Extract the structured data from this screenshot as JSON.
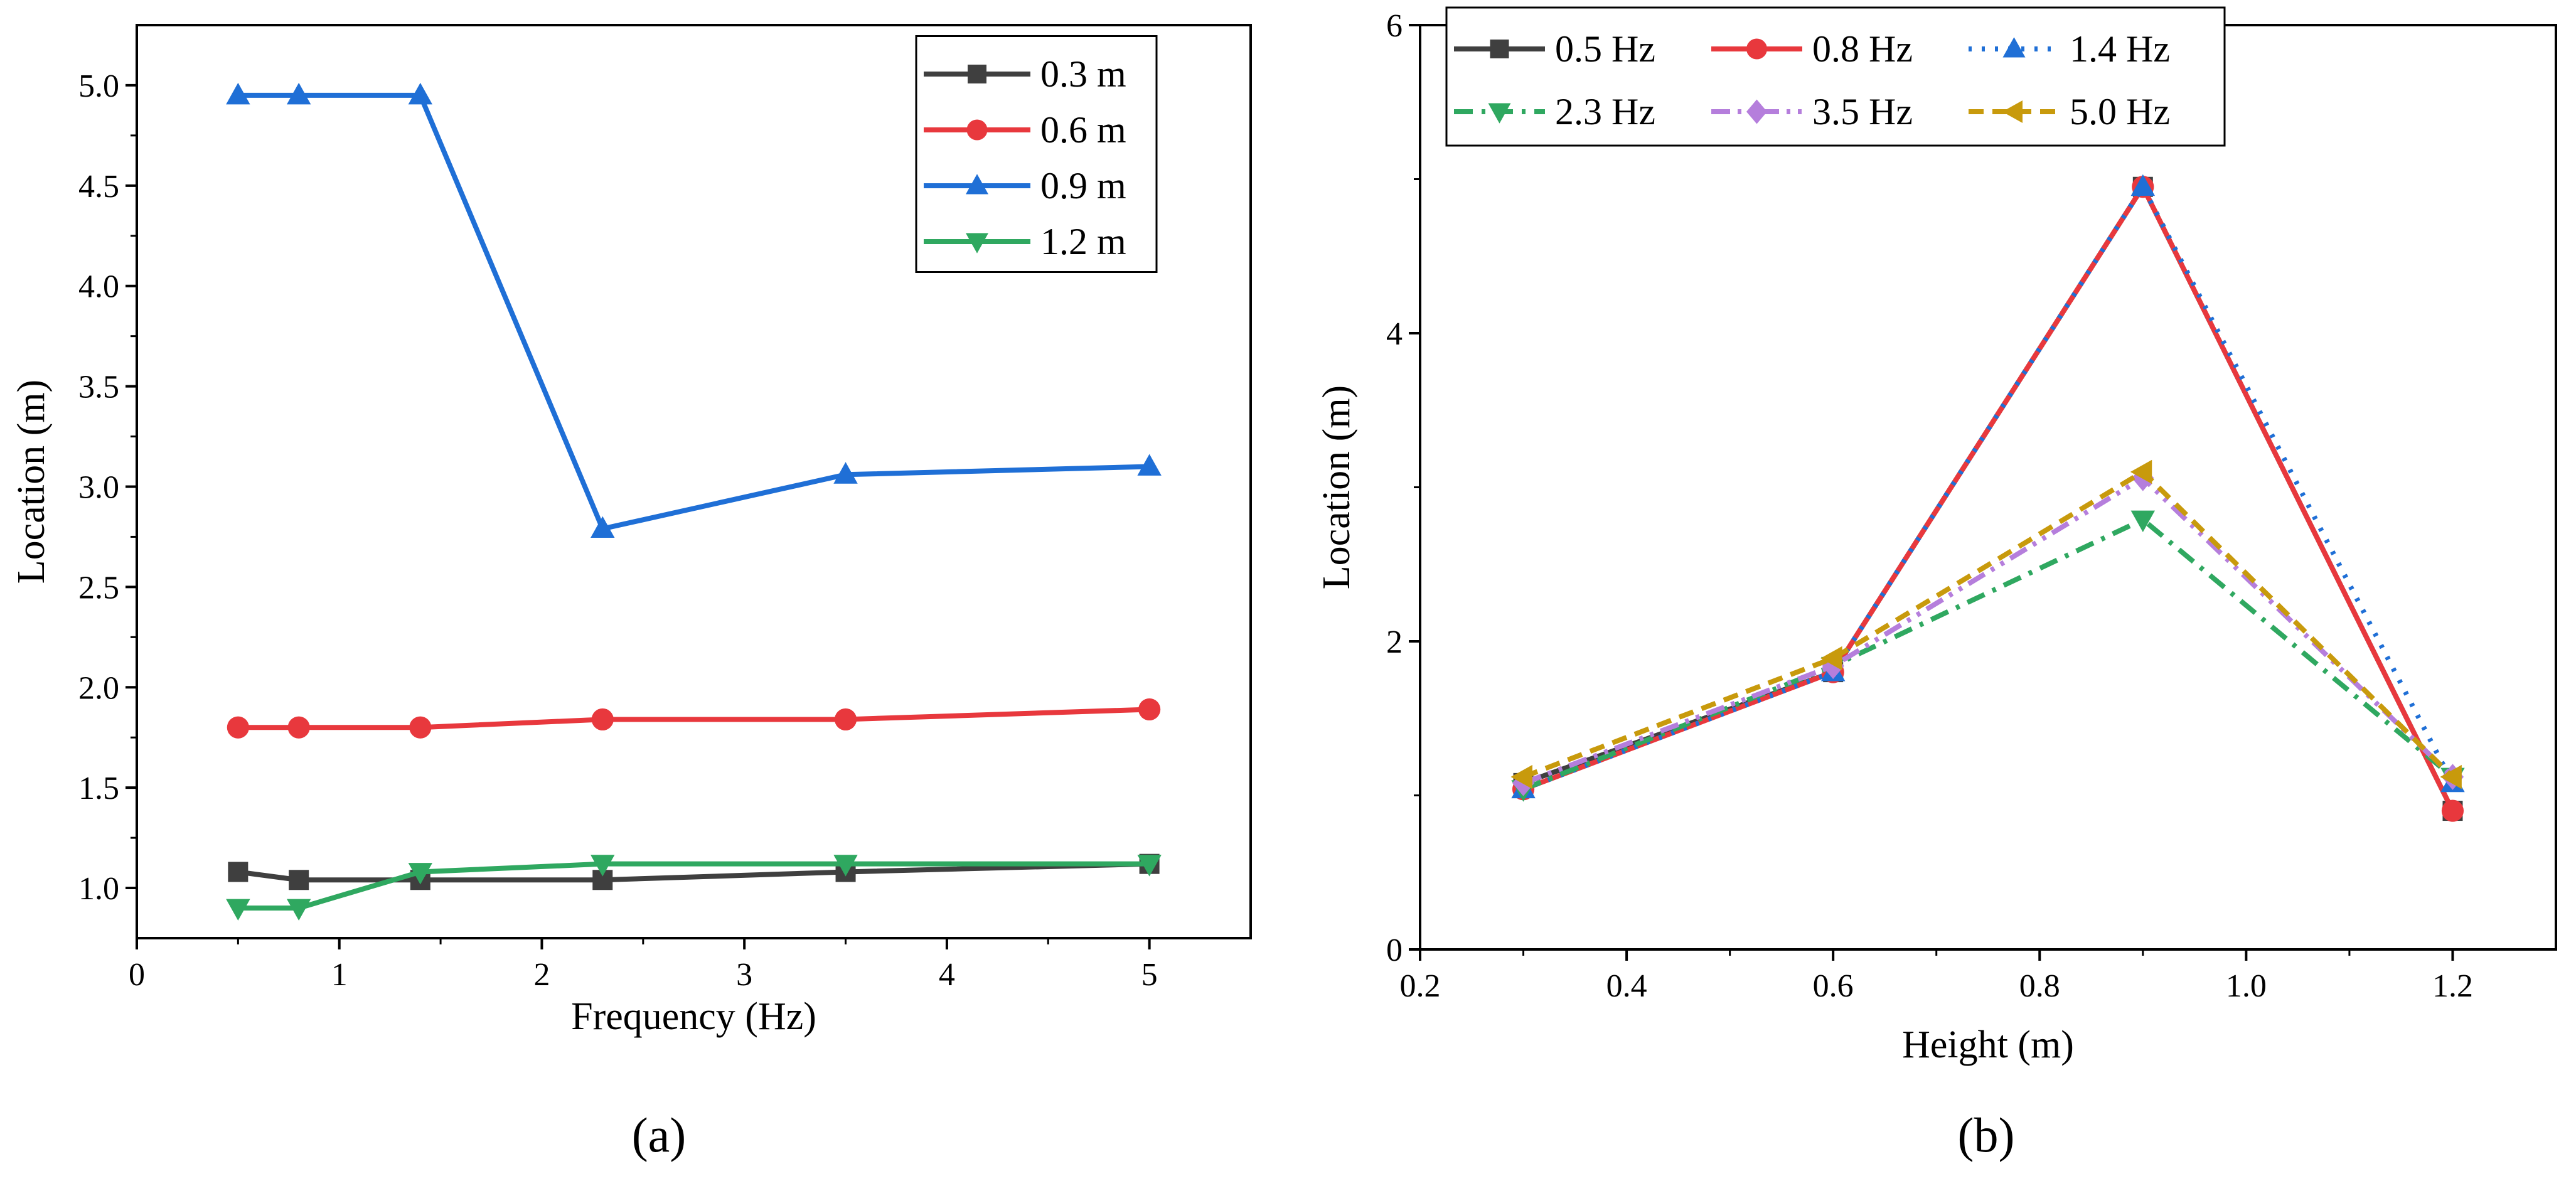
{
  "chart_data": [
    {
      "panel": "(a)",
      "type": "line",
      "xlabel": "Frequency (Hz)",
      "ylabel": "Location (m)",
      "xlim": [
        0,
        5.5
      ],
      "ylim": [
        0.75,
        5.3
      ],
      "xticks": [
        0,
        1,
        2,
        3,
        4,
        5
      ],
      "yticks": [
        1.0,
        1.5,
        2.0,
        2.5,
        3.0,
        3.5,
        4.0,
        4.5,
        5.0
      ],
      "ytick_labels": [
        "1.0",
        "1.5",
        "2.0",
        "2.5",
        "3.0",
        "3.5",
        "4.0",
        "4.5",
        "5.0"
      ],
      "legend_position": "top-right",
      "x": [
        0.5,
        0.8,
        1.4,
        2.3,
        3.5,
        5.0
      ],
      "series": [
        {
          "name": "0.3 m",
          "color": "#3f3f3f",
          "marker": "square",
          "dash": "solid",
          "values": [
            1.08,
            1.04,
            1.04,
            1.04,
            1.08,
            1.12
          ]
        },
        {
          "name": "0.6 m",
          "color": "#e8383d",
          "marker": "circle",
          "dash": "solid",
          "values": [
            1.8,
            1.8,
            1.8,
            1.84,
            1.84,
            1.89
          ]
        },
        {
          "name": "0.9 m",
          "color": "#1f6fd6",
          "marker": "triangle-up",
          "dash": "solid",
          "values": [
            4.95,
            4.95,
            4.95,
            2.79,
            3.06,
            3.1
          ]
        },
        {
          "name": "1.2 m",
          "color": "#2fa860",
          "marker": "triangle-down",
          "dash": "solid",
          "values": [
            0.9,
            0.9,
            1.08,
            1.12,
            1.12,
            1.12
          ]
        }
      ]
    },
    {
      "panel": "(b)",
      "type": "line",
      "xlabel": "Height (m)",
      "ylabel": "Location (m)",
      "xlim": [
        0.2,
        1.3
      ],
      "ylim": [
        0,
        6
      ],
      "xticks": [
        0.2,
        0.4,
        0.6,
        0.8,
        1.0,
        1.2
      ],
      "xtick_labels": [
        "0.2",
        "0.4",
        "0.6",
        "0.8",
        "1.0",
        "1.2"
      ],
      "yticks": [
        0,
        2,
        4,
        6
      ],
      "legend_position": "top-left",
      "x": [
        0.3,
        0.6,
        0.9,
        1.2
      ],
      "series": [
        {
          "name": "0.5 Hz",
          "color": "#3f3f3f",
          "marker": "square",
          "dash": "solid",
          "values": [
            1.08,
            1.8,
            4.95,
            0.9
          ]
        },
        {
          "name": "0.8 Hz",
          "color": "#e8383d",
          "marker": "circle",
          "dash": "solid",
          "values": [
            1.04,
            1.8,
            4.95,
            0.9
          ]
        },
        {
          "name": "1.4 Hz",
          "color": "#1f6fd6",
          "marker": "triangle-up",
          "dash": "dot",
          "values": [
            1.04,
            1.8,
            4.95,
            1.08
          ]
        },
        {
          "name": "2.3 Hz",
          "color": "#2fa860",
          "marker": "triangle-down",
          "dash": "dashdot",
          "values": [
            1.04,
            1.84,
            2.79,
            1.12
          ]
        },
        {
          "name": "3.5 Hz",
          "color": "#b57edc",
          "marker": "diamond",
          "dash": "dashdotdot",
          "values": [
            1.08,
            1.84,
            3.06,
            1.12
          ]
        },
        {
          "name": "5.0 Hz",
          "color": "#c89a0c",
          "marker": "triangle-left",
          "dash": "dash",
          "values": [
            1.12,
            1.89,
            3.1,
            1.12
          ]
        }
      ]
    }
  ]
}
